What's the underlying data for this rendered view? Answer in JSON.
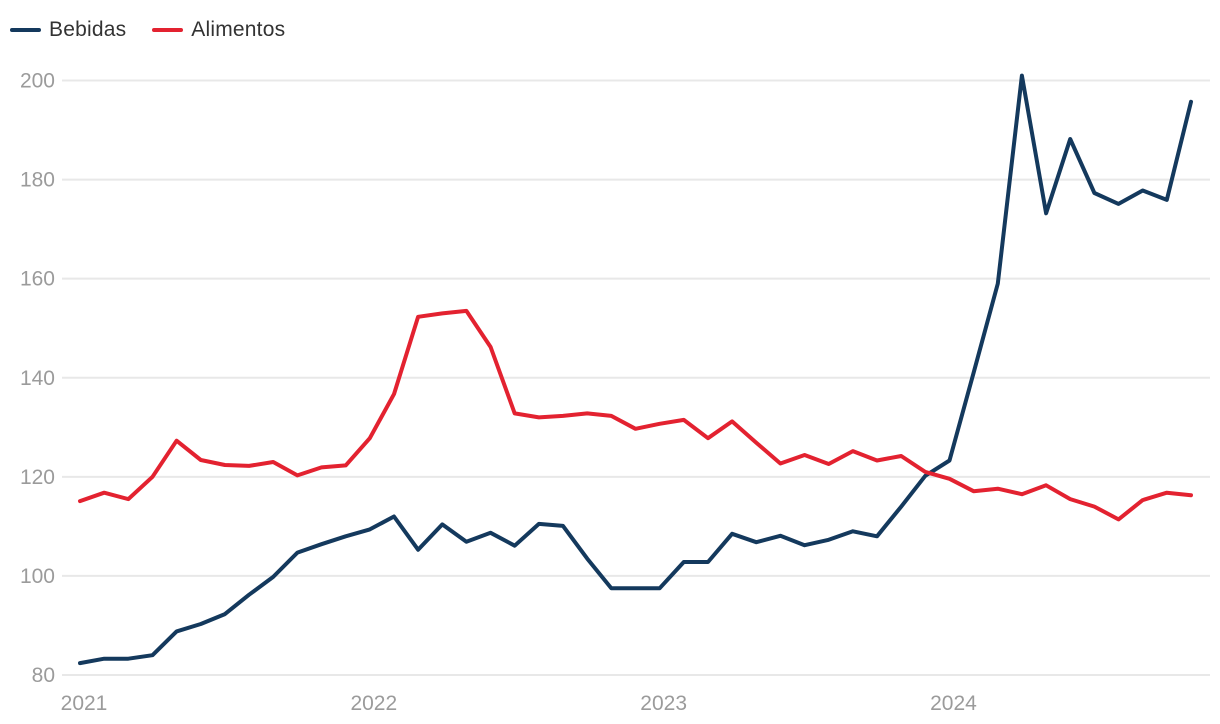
{
  "legend": {
    "items": [
      {
        "label": "Bebidas",
        "color": "#14395d"
      },
      {
        "label": "Alimentos",
        "color": "#e32230"
      }
    ]
  },
  "chart_data": {
    "type": "line",
    "title": "",
    "xlabel": "",
    "ylabel": "",
    "ylim": [
      80,
      200
    ],
    "yticks": [
      80,
      100,
      120,
      140,
      160,
      180,
      200
    ],
    "grid": "horizontal",
    "grid_color": "#e8e8e8",
    "tick_label_color": "#9b9b9b",
    "legend_position": "top-left",
    "x": [
      "2021-01",
      "2021-02",
      "2021-03",
      "2021-04",
      "2021-05",
      "2021-06",
      "2021-07",
      "2021-08",
      "2021-09",
      "2021-10",
      "2021-11",
      "2021-12",
      "2022-01",
      "2022-02",
      "2022-03",
      "2022-04",
      "2022-05",
      "2022-06",
      "2022-07",
      "2022-08",
      "2022-09",
      "2022-10",
      "2022-11",
      "2022-12",
      "2023-01",
      "2023-02",
      "2023-03",
      "2023-04",
      "2023-05",
      "2023-06",
      "2023-07",
      "2023-08",
      "2023-09",
      "2023-10",
      "2023-11",
      "2023-12",
      "2024-01",
      "2024-02",
      "2024-03",
      "2024-04",
      "2024-05",
      "2024-06",
      "2024-07",
      "2024-08",
      "2024-09",
      "2024-10",
      "2024-11"
    ],
    "xticks": [
      {
        "label": "2021",
        "index": 0
      },
      {
        "label": "2022",
        "index": 12
      },
      {
        "label": "2023",
        "index": 24
      },
      {
        "label": "2024",
        "index": 36
      }
    ],
    "series": [
      {
        "name": "Bebidas",
        "color": "#14395d",
        "values": [
          82.4,
          83.3,
          83.3,
          84.0,
          88.8,
          90.3,
          92.3,
          96.2,
          99.8,
          104.7,
          106.4,
          108.0,
          109.4,
          112.0,
          105.3,
          110.4,
          106.9,
          108.7,
          106.1,
          110.5,
          110.1,
          103.5,
          97.5,
          97.5,
          97.5,
          102.8,
          102.8,
          108.5,
          106.8,
          108.1,
          106.2,
          107.3,
          109.0,
          108.0,
          114.0,
          120.2,
          123.3,
          141.0,
          159.0,
          201.0,
          173.2,
          188.2,
          177.3,
          175.1,
          177.8,
          175.9,
          195.7
        ]
      },
      {
        "name": "Alimentos",
        "color": "#e32230",
        "values": [
          115.1,
          116.8,
          115.5,
          120.0,
          127.3,
          123.4,
          122.4,
          122.2,
          123.0,
          120.3,
          121.9,
          122.3,
          127.8,
          136.7,
          152.3,
          153.0,
          153.5,
          146.2,
          132.8,
          132.0,
          132.3,
          132.8,
          132.3,
          129.7,
          130.7,
          131.5,
          127.8,
          131.2,
          126.9,
          122.7,
          124.4,
          122.6,
          125.2,
          123.3,
          124.2,
          121.0,
          119.6,
          117.1,
          117.6,
          116.5,
          118.3,
          115.5,
          114.0,
          111.4,
          115.3,
          116.8,
          116.3
        ]
      }
    ]
  }
}
